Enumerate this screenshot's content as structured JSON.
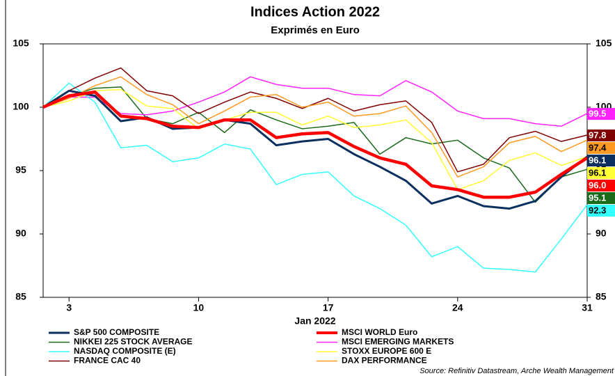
{
  "chart_data": {
    "type": "line",
    "title": "Indices Action 2022",
    "subtitle": "Exprimés en Euro",
    "x_label": "Jan 2022",
    "source": "Source: Refinitiv Datastream, Arche Wealth Management",
    "categories": [
      null,
      "3",
      null,
      null,
      null,
      null,
      "10",
      null,
      null,
      null,
      null,
      "17",
      null,
      null,
      null,
      null,
      "24",
      null,
      null,
      null,
      null,
      "31"
    ],
    "ylim": [
      85,
      105
    ],
    "yticks": [
      85,
      90,
      95,
      100,
      105
    ],
    "series": [
      {
        "name": "S&P 500 COMPOSITE",
        "color": "#0b2f5e",
        "line_width": 3,
        "end_label": "96.1",
        "values": [
          100.0,
          101.3,
          100.9,
          98.9,
          99.2,
          98.3,
          98.4,
          99.0,
          98.7,
          97.0,
          97.3,
          97.5,
          96.3,
          95.3,
          94.2,
          92.4,
          93.0,
          92.2,
          92.0,
          92.6,
          94.5,
          96.1
        ]
      },
      {
        "name": "MSCI WORLD Euro",
        "color": "#ff0000",
        "line_width": 4.5,
        "end_label": "96.0",
        "values": [
          100.0,
          100.9,
          101.2,
          99.3,
          99.1,
          98.5,
          98.4,
          99.0,
          99.0,
          97.6,
          97.9,
          98.0,
          96.9,
          96.0,
          95.5,
          93.8,
          93.5,
          92.9,
          92.9,
          93.3,
          94.7,
          96.0
        ]
      },
      {
        "name": "NIKKEI 225 STOCK AVERAGE",
        "color": "#1a6b1a",
        "line_width": 1.5,
        "end_label": "95.1",
        "values": [
          100.0,
          100.9,
          101.5,
          101.6,
          99.1,
          98.7,
          99.6,
          98.0,
          99.8,
          99.0,
          98.3,
          98.5,
          98.8,
          96.3,
          97.6,
          97.1,
          97.4,
          96.0,
          95.2,
          92.5,
          94.5,
          95.1
        ]
      },
      {
        "name": "MSCI EMERGING MARKETS",
        "color": "#ff22ff",
        "line_width": 1.5,
        "end_label": "99.5",
        "values": [
          100.0,
          100.8,
          100.8,
          99.5,
          99.4,
          99.7,
          100.4,
          101.2,
          102.4,
          101.8,
          101.5,
          101.5,
          101.0,
          100.9,
          102.1,
          101.2,
          99.7,
          99.1,
          99.1,
          98.7,
          98.5,
          99.5
        ]
      },
      {
        "name": "NASDAQ COMPOSITE (E)",
        "color": "#33ffff",
        "line_width": 1.5,
        "end_label": "92.3",
        "values": [
          100.0,
          101.9,
          100.4,
          96.8,
          97.0,
          95.7,
          96.0,
          97.1,
          96.7,
          93.9,
          94.7,
          94.9,
          93.0,
          92.0,
          90.7,
          88.2,
          89.0,
          87.3,
          87.2,
          87.0,
          89.6,
          92.3
        ]
      },
      {
        "name": "STOXX EUROPE 600 E",
        "color": "#ffff33",
        "line_width": 1.5,
        "end_label": "96.1",
        "values": [
          100.0,
          100.5,
          101.3,
          101.4,
          100.1,
          99.9,
          98.3,
          99.0,
          99.6,
          99.6,
          98.6,
          99.3,
          98.4,
          98.6,
          99.0,
          97.2,
          93.5,
          94.2,
          95.8,
          96.4,
          95.4,
          96.1
        ]
      },
      {
        "name": "FRANCE CAC 40",
        "color": "#800000",
        "line_width": 1.5,
        "end_label": "97.8",
        "values": [
          100.0,
          101.3,
          102.3,
          103.1,
          101.3,
          100.9,
          99.5,
          100.4,
          101.2,
          100.7,
          99.9,
          100.7,
          99.7,
          100.2,
          100.5,
          98.8,
          94.9,
          95.5,
          97.6,
          98.1,
          97.3,
          97.8
        ]
      },
      {
        "name": "DAX PERFORMANCE",
        "color": "#ff9922",
        "line_width": 1.5,
        "end_label": "97.4",
        "values": [
          100.0,
          100.7,
          101.7,
          102.4,
          101.0,
          100.2,
          98.7,
          99.7,
          100.8,
          101.0,
          100.0,
          100.4,
          99.3,
          99.5,
          100.1,
          98.0,
          94.5,
          95.3,
          97.2,
          97.7,
          96.5,
          97.4
        ]
      }
    ]
  }
}
